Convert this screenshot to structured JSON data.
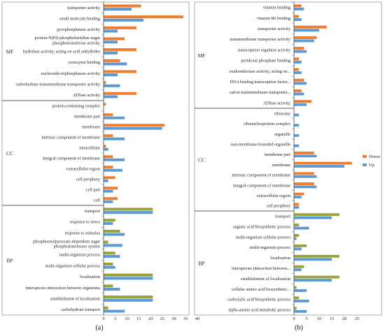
{
  "chart_data": [
    {
      "type": "bar",
      "orientation": "horizontal",
      "panel_label": "(a)",
      "xlim": [
        0,
        40
      ],
      "x_ticks": [
        0,
        5,
        10,
        15,
        20,
        25,
        30,
        35,
        40
      ],
      "grid": false,
      "colors": {
        "Down": "#ed7d31",
        "Up": "#5b9bd5",
        "BP": "#9aa33a"
      },
      "groups": [
        {
          "name": "MF",
          "categories": [
            {
              "label": [
                "transporter activity"
              ],
              "down": 16,
              "up": 12
            },
            {
              "label": [
                "small molecule binding"
              ],
              "down": 34,
              "up": 17
            },
            {
              "label": [
                "pyrophosphatase activity"
              ],
              "down": 14,
              "up": 6
            },
            {
              "label": [
                "protein-N(PI)-phosphohistidine-sugar",
                "phosphotransferase activity"
              ],
              "down": 9,
              "up": 6
            },
            {
              "label": [
                "hydrolase activity, acting on acid anhydrides"
              ],
              "down": 14,
              "up": 6
            },
            {
              "label": [
                "coenzyme binding"
              ],
              "down": 7,
              "up": 10
            },
            {
              "label": [
                "nucleoside-triphosphatase activity"
              ],
              "down": 14,
              "up": 6
            },
            {
              "label": [
                "carbohydrate transmembrane transporter activity"
              ],
              "down": 1,
              "up": 7
            },
            {
              "label": [
                "ATPase activity"
              ],
              "down": 14,
              "up": 6
            }
          ]
        },
        {
          "name": "CC",
          "categories": [
            {
              "label": [
                "protein-containing complex"
              ],
              "down": 1,
              "up": 0
            },
            {
              "label": [
                "membrane part"
              ],
              "down": 4,
              "up": 9
            },
            {
              "label": [
                "membrane"
              ],
              "down": 26,
              "up": 25
            },
            {
              "label": [
                "intrinsic component of membrane"
              ],
              "down": 4,
              "up": 9
            },
            {
              "label": [
                "intracellular"
              ],
              "down": 1,
              "up": 2
            },
            {
              "label": [
                "integral component of membrane"
              ],
              "down": 4,
              "up": 9
            },
            {
              "label": [
                "extracellular region"
              ],
              "down": 4,
              "up": 8
            },
            {
              "label": [
                "cell periphery"
              ],
              "down": 5,
              "up": 2
            },
            {
              "label": [
                "cell part"
              ],
              "down": 6,
              "up": 4
            },
            {
              "label": [
                "cell"
              ],
              "down": 6,
              "up": 4
            }
          ]
        },
        {
          "name": "BP",
          "categories": [
            {
              "label": [
                "transport"
              ],
              "down": 21,
              "up": 21
            },
            {
              "label": [
                "response to stress"
              ],
              "down": 5,
              "up": 4
            },
            {
              "label": [
                "response to stimulus"
              ],
              "down": 7,
              "up": 9
            },
            {
              "label": [
                "phosphoenolpyruvate-dependent sugar",
                "phosphotransferase system"
              ],
              "down": 2,
              "up": 8
            },
            {
              "label": [
                "multi-organism process"
              ],
              "down": 5,
              "up": 7
            },
            {
              "label": [
                "multi-organism cellular process"
              ],
              "down": 4,
              "up": 5
            },
            {
              "label": [
                "localization"
              ],
              "down": 21,
              "up": 21
            },
            {
              "label": [
                "interspecies interaction between organisms"
              ],
              "down": 4,
              "up": 7
            },
            {
              "label": [
                "establishment of localization"
              ],
              "down": 21,
              "up": 21
            },
            {
              "label": [
                "carbohydrate transport"
              ],
              "down": 2,
              "up": 9
            }
          ]
        }
      ]
    },
    {
      "type": "bar",
      "orientation": "horizontal",
      "panel_label": "(b)",
      "xlim": [
        0,
        25
      ],
      "x_ticks": [
        0,
        5,
        10,
        15,
        20,
        25
      ],
      "grid": false,
      "legend": {
        "entries": [
          "Down",
          "Up"
        ],
        "position": "right"
      },
      "colors": {
        "Down": "#ed7d31",
        "Up": "#5b9bd5",
        "BP": "#9aa33a"
      },
      "groups": [
        {
          "name": "MF",
          "categories": [
            {
              "label": [
                "vitamin binding"
              ],
              "down": 3,
              "up": 4
            },
            {
              "label": [
                "vitamin B6 binding"
              ],
              "down": 2,
              "up": 3
            },
            {
              "label": [
                "transporter activity"
              ],
              "down": 13,
              "up": 10
            },
            {
              "label": [
                "transmembrane transporter activity"
              ],
              "down": 9,
              "up": 8
            },
            {
              "label": [
                "transcription regulator activity"
              ],
              "down": 4,
              "up": 5
            },
            {
              "label": [
                "pyridoxal phosphate binding"
              ],
              "down": 2,
              "up": 3
            },
            {
              "label": [
                "oxidoreductase activity, acting on..."
              ],
              "down": 2,
              "up": 3
            },
            {
              "label": [
                "DNA binding transcription factor..."
              ],
              "down": 4,
              "up": 5
            },
            {
              "label": [
                "cation transmembrane transporter..."
              ],
              "down": 3,
              "up": 4
            },
            {
              "label": [
                "ATPase activity"
              ],
              "down": 7,
              "up": 5
            }
          ]
        },
        {
          "name": "CC",
          "categories": [
            {
              "label": [
                "ribosome"
              ],
              "down": 0,
              "up": 2
            },
            {
              "label": [
                "ribonucleoprotein complex"
              ],
              "down": 0,
              "up": 2
            },
            {
              "label": [
                "organelle"
              ],
              "down": 0,
              "up": 2
            },
            {
              "label": [
                "non-membrane-bounded organelle"
              ],
              "down": 0,
              "up": 2
            },
            {
              "label": [
                "membrane part"
              ],
              "down": 8,
              "up": 9
            },
            {
              "label": [
                "membrane"
              ],
              "down": 23,
              "up": 20
            },
            {
              "label": [
                "intrinsic component of membrane"
              ],
              "down": 8,
              "up": 9
            },
            {
              "label": [
                "integral component of membrane"
              ],
              "down": 8,
              "up": 9
            },
            {
              "label": [
                "extracellular region"
              ],
              "down": 4,
              "up": 3
            },
            {
              "label": [
                "cell periphery"
              ],
              "down": 2,
              "up": 2
            }
          ]
        },
        {
          "name": "BP",
          "categories": [
            {
              "label": [
                "transport"
              ],
              "down": 18,
              "up": 15
            },
            {
              "label": [
                "organic acid biosynthetic process"
              ],
              "down": 2,
              "up": 6
            },
            {
              "label": [
                "multi-organism cellular process"
              ],
              "down": 2,
              "up": 1
            },
            {
              "label": [
                "multi-organism process"
              ],
              "down": 5,
              "up": 3
            },
            {
              "label": [
                "localization"
              ],
              "down": 18,
              "up": 15
            },
            {
              "label": [
                "interspecies interaction between..."
              ],
              "down": 4,
              "up": 3
            },
            {
              "label": [
                "establishment of localization"
              ],
              "down": 18,
              "up": 15
            },
            {
              "label": [
                "cellular amino acid biosynthetic..."
              ],
              "down": 1,
              "up": 5
            },
            {
              "label": [
                "carboxylic acid biosynthetic process"
              ],
              "down": 2,
              "up": 6
            },
            {
              "label": [
                "alpha-amino acid metabolic process"
              ],
              "down": 1,
              "up": 5
            }
          ]
        }
      ]
    }
  ]
}
